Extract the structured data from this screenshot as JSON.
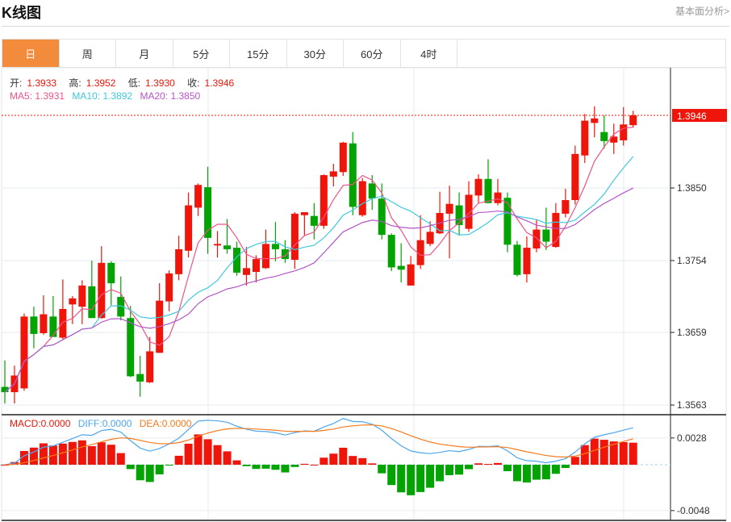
{
  "header": {
    "title": "K线图",
    "link": "基本面分析>"
  },
  "tabs": [
    {
      "label": "日",
      "active": true
    },
    {
      "label": "周"
    },
    {
      "label": "月"
    },
    {
      "label": "5分"
    },
    {
      "label": "15分"
    },
    {
      "label": "30分"
    },
    {
      "label": "60分"
    },
    {
      "label": "4时"
    }
  ],
  "info": {
    "open_label": "开:",
    "open": "1.3933",
    "high_label": "高:",
    "high": "1.3952",
    "low_label": "低:",
    "low": "1.3930",
    "close_label": "收:",
    "close": "1.3946",
    "ma5": "MA5: 1.3931",
    "ma10": "MA10: 1.3892",
    "ma20": "MA20: 1.3850"
  },
  "macd_legend": {
    "macd": "MACD:0.0000",
    "diff": "DIFF:0.0000",
    "dea": "DEA:0.0000"
  },
  "colors": {
    "up": "#f0150a",
    "down": "#02a302",
    "ma5": "#f0528a",
    "ma10": "#3fc9dd",
    "ma20": "#b455c8",
    "diff": "#4da6ee",
    "dea": "#f57a1c",
    "accent": "#f28c3c"
  },
  "chart_data": {
    "type": "candlestick",
    "price_axis": {
      "ticks": [
        "1.3850",
        "1.3754",
        "1.3659",
        "1.3563"
      ],
      "range": [
        1.355,
        1.399
      ],
      "current": "1.3946"
    },
    "macd_axis": {
      "ticks": [
        "0.0028",
        "-0.0048"
      ]
    },
    "ohlc": [
      [
        1.3587,
        1.3622,
        1.3565,
        1.358
      ],
      [
        1.358,
        1.3615,
        1.3565,
        1.3602
      ],
      [
        1.3585,
        1.3684,
        1.3582,
        1.368
      ],
      [
        1.368,
        1.3693,
        1.3638,
        1.3657
      ],
      [
        1.3658,
        1.3708,
        1.3656,
        1.3683
      ],
      [
        1.368,
        1.3707,
        1.3653,
        1.3653
      ],
      [
        1.3652,
        1.3729,
        1.365,
        1.369
      ],
      [
        1.3696,
        1.3707,
        1.367,
        1.3704
      ],
      [
        1.3693,
        1.3728,
        1.367,
        1.3721
      ],
      [
        1.372,
        1.3754,
        1.3678,
        1.3678
      ],
      [
        1.3678,
        1.3773,
        1.3677,
        1.3751
      ],
      [
        1.3751,
        1.3753,
        1.3695,
        1.3724
      ],
      [
        1.3706,
        1.3733,
        1.3675,
        1.368
      ],
      [
        1.3678,
        1.3694,
        1.36,
        1.3601
      ],
      [
        1.3604,
        1.3628,
        1.3574,
        1.3594
      ],
      [
        1.3593,
        1.3653,
        1.3592,
        1.3634
      ],
      [
        1.3632,
        1.3724,
        1.3632,
        1.3701
      ],
      [
        1.37,
        1.3741,
        1.3687,
        1.3737
      ],
      [
        1.3736,
        1.3787,
        1.3728,
        1.3769
      ],
      [
        1.3767,
        1.3844,
        1.3758,
        1.3827
      ],
      [
        1.3824,
        1.3856,
        1.3813,
        1.3854
      ],
      [
        1.3851,
        1.3878,
        1.3763,
        1.3784
      ],
      [
        1.3774,
        1.3793,
        1.3758,
        1.3776
      ],
      [
        1.3774,
        1.3809,
        1.3763,
        1.3769
      ],
      [
        1.3771,
        1.3779,
        1.3734,
        1.3738
      ],
      [
        1.3735,
        1.3772,
        1.3721,
        1.3744
      ],
      [
        1.3739,
        1.3761,
        1.3725,
        1.3756
      ],
      [
        1.3744,
        1.3795,
        1.3743,
        1.3776
      ],
      [
        1.3776,
        1.3805,
        1.3753,
        1.3769
      ],
      [
        1.3769,
        1.3781,
        1.3751,
        1.3756
      ],
      [
        1.3755,
        1.3818,
        1.3743,
        1.3816
      ],
      [
        1.3814,
        1.3818,
        1.3787,
        1.3818
      ],
      [
        1.3813,
        1.383,
        1.3782,
        1.38
      ],
      [
        1.38,
        1.3868,
        1.3796,
        1.3867
      ],
      [
        1.3865,
        1.3882,
        1.3852,
        1.3872
      ],
      [
        1.3871,
        1.3911,
        1.3866,
        1.391
      ],
      [
        1.3909,
        1.3924,
        1.3814,
        1.3825
      ],
      [
        1.3814,
        1.3863,
        1.3812,
        1.3859
      ],
      [
        1.3856,
        1.3867,
        1.3821,
        1.3836
      ],
      [
        1.3836,
        1.3856,
        1.3782,
        1.3788
      ],
      [
        1.3788,
        1.379,
        1.374,
        1.3745
      ],
      [
        1.3747,
        1.3777,
        1.3725,
        1.3742
      ],
      [
        1.3721,
        1.376,
        1.3721,
        1.3749
      ],
      [
        1.3748,
        1.3814,
        1.3743,
        1.3781
      ],
      [
        1.3776,
        1.3806,
        1.3773,
        1.3792
      ],
      [
        1.379,
        1.3845,
        1.3789,
        1.3817
      ],
      [
        1.3816,
        1.3853,
        1.3757,
        1.3829
      ],
      [
        1.3827,
        1.3844,
        1.3787,
        1.3801
      ],
      [
        1.3796,
        1.3859,
        1.3792,
        1.3841
      ],
      [
        1.384,
        1.3868,
        1.383,
        1.3862
      ],
      [
        1.3862,
        1.3888,
        1.383,
        1.383
      ],
      [
        1.383,
        1.3862,
        1.3827,
        1.3844
      ],
      [
        1.3837,
        1.3844,
        1.3765,
        1.3775
      ],
      [
        1.3775,
        1.378,
        1.3733,
        1.3735
      ],
      [
        1.3736,
        1.3786,
        1.3725,
        1.3771
      ],
      [
        1.377,
        1.3808,
        1.3765,
        1.3795
      ],
      [
        1.3795,
        1.3824,
        1.3768,
        1.3779
      ],
      [
        1.3772,
        1.383,
        1.3771,
        1.3817
      ],
      [
        1.3816,
        1.3849,
        1.3811,
        1.3834
      ],
      [
        1.3834,
        1.3906,
        1.3828,
        1.3895
      ],
      [
        1.3893,
        1.3948,
        1.3883,
        1.3939
      ],
      [
        1.3936,
        1.3958,
        1.3917,
        1.3942
      ],
      [
        1.3924,
        1.3946,
        1.3902,
        1.3912
      ],
      [
        1.391,
        1.3935,
        1.3895,
        1.3918
      ],
      [
        1.3913,
        1.3957,
        1.3906,
        1.3934
      ],
      [
        1.3933,
        1.3952,
        1.393,
        1.3946
      ]
    ]
  }
}
